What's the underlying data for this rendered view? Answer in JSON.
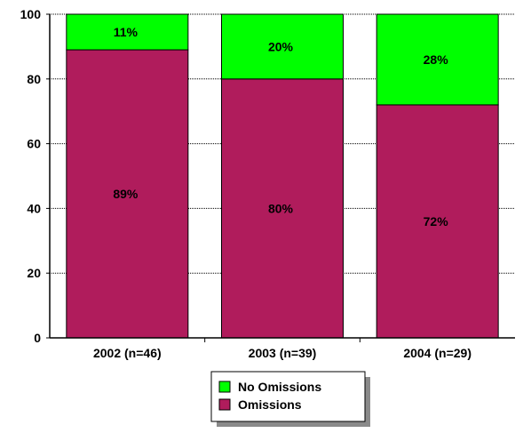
{
  "chart_data": {
    "type": "bar",
    "stacked": true,
    "categories": [
      "2002 (n=46)",
      "2003 (n=39)",
      "2004 (n=29)"
    ],
    "series": [
      {
        "name": "Omissions",
        "values": [
          89,
          80,
          72
        ],
        "labels": [
          "89%",
          "80%",
          "72%"
        ],
        "color": "#b01c5c"
      },
      {
        "name": "No Omissions",
        "values": [
          11,
          20,
          28
        ],
        "labels": [
          "11%",
          "20%",
          "28%"
        ],
        "color": "#00ff00"
      }
    ],
    "ylim": [
      0,
      100
    ],
    "yticks": [
      "0",
      "20",
      "40",
      "60",
      "80",
      "100"
    ],
    "grid": true,
    "legend_position": "bottom-center",
    "legend_order": [
      "No Omissions",
      "Omissions"
    ]
  }
}
